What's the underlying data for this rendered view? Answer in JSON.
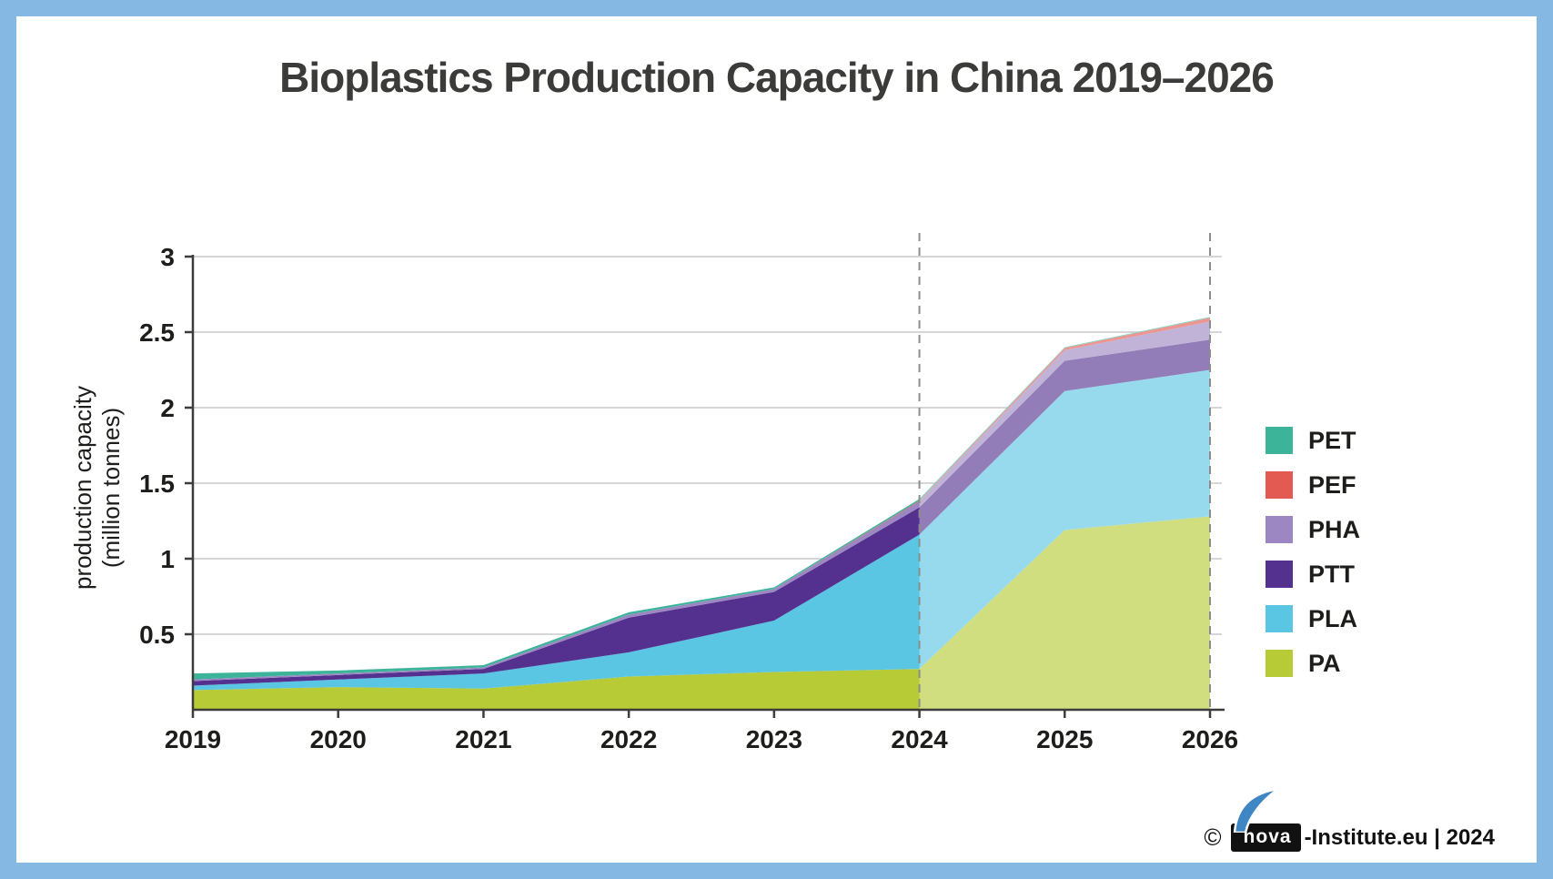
{
  "title": "Bioplastics Production Capacity in China 2019–2026",
  "y_axis": {
    "label_line1": "production capacity",
    "label_line2": "(million tonnes)",
    "tick_labels": [
      "0.5",
      "1",
      "1.5",
      "2",
      "2.5",
      "3"
    ]
  },
  "x_axis": {
    "tick_labels": [
      "2019",
      "2020",
      "2021",
      "2022",
      "2023",
      "2024",
      "2025",
      "2026"
    ]
  },
  "legend": {
    "position": "right",
    "items": [
      {
        "label": "PET",
        "color": "#3cb49a"
      },
      {
        "label": "PEF",
        "color": "#e25a52"
      },
      {
        "label": "PHA",
        "color": "#9d87c2"
      },
      {
        "label": "PTT",
        "color": "#55318f"
      },
      {
        "label": "PLA",
        "color": "#5bc5e4"
      },
      {
        "label": "PA",
        "color": "#b6cb35"
      }
    ]
  },
  "footer": {
    "copyright": "©",
    "logo_text": "nova",
    "suffix": "-Institute.eu | 2024"
  },
  "colors": {
    "border": "#85b8e3",
    "gridline": "#c9c9c9",
    "axis": "#3c3c3b",
    "dashed_line": "#8c8c8c",
    "forecast_overlay": "rgba(255,255,255,0.37)",
    "title_text": "#3b3b3a",
    "tick_text": "#1d1d1b",
    "logo_blue": "#3f86c4"
  },
  "chart_data": {
    "type": "area",
    "stacked": true,
    "title": "Bioplastics Production Capacity in China 2019–2026",
    "xlabel": "",
    "ylabel": "production capacity (million tonnes)",
    "x": [
      2019,
      2020,
      2021,
      2022,
      2023,
      2024,
      2025,
      2026
    ],
    "ylim": [
      0,
      3
    ],
    "yticks": [
      0.5,
      1,
      1.5,
      2,
      2.5,
      3
    ],
    "grid": true,
    "legend_position": "right",
    "forecast_from_x": 2024,
    "dashed_lines_at_x": [
      2024,
      2026
    ],
    "series_stack_order": "bottom_to_top",
    "series": [
      {
        "name": "PA",
        "color": "#b6cb35",
        "values": [
          0.13,
          0.15,
          0.14,
          0.22,
          0.25,
          0.27,
          1.19,
          1.28
        ]
      },
      {
        "name": "PLA",
        "color": "#5bc5e4",
        "values": [
          0.03,
          0.05,
          0.1,
          0.16,
          0.34,
          0.89,
          0.92,
          0.97
        ]
      },
      {
        "name": "PTT",
        "color": "#55318f",
        "values": [
          0.03,
          0.03,
          0.03,
          0.23,
          0.19,
          0.18,
          0.2,
          0.2
        ]
      },
      {
        "name": "PHA",
        "color": "#9d87c2",
        "values": [
          0.01,
          0.01,
          0.01,
          0.02,
          0.02,
          0.04,
          0.07,
          0.12
        ]
      },
      {
        "name": "PEF",
        "color": "#e25a52",
        "values": [
          0.0,
          0.0,
          0.0,
          0.0,
          0.0,
          0.005,
          0.015,
          0.025
        ]
      },
      {
        "name": "PET",
        "color": "#3cb49a",
        "values": [
          0.04,
          0.02,
          0.015,
          0.015,
          0.01,
          0.01,
          0.005,
          0.005
        ]
      }
    ],
    "totals": [
      0.24,
      0.26,
      0.295,
      0.645,
      0.81,
      1.395,
      2.4,
      2.6
    ]
  }
}
